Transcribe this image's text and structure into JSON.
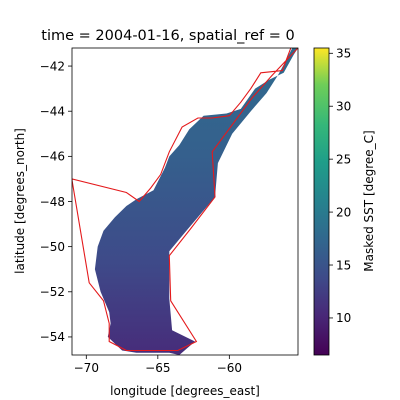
{
  "chart_data": {
    "type": "heatmap",
    "title": "time = 2004-01-16, spatial_ref = 0",
    "xlabel": "longitude [degrees_east]",
    "ylabel": "latitude [degrees_north]",
    "xlim": [
      -71.0,
      -55.2
    ],
    "ylim": [
      -54.8,
      -41.2
    ],
    "xticks": [
      -70,
      -65,
      -60
    ],
    "xtick_labels": [
      "−70",
      "−65",
      "−60"
    ],
    "yticks": [
      -42,
      -44,
      -46,
      -48,
      -50,
      -52,
      -54
    ],
    "ytick_labels": [
      "−42",
      "−44",
      "−46",
      "−48",
      "−50",
      "−52",
      "−54"
    ],
    "colorbar": {
      "label": "Masked SST [degree_C]",
      "colormap": "viridis",
      "range": [
        6.5,
        35.5
      ],
      "ticks": [
        10,
        15,
        20,
        25,
        30,
        35
      ],
      "tick_labels": [
        "10",
        "15",
        "20",
        "25",
        "30",
        "35"
      ]
    },
    "ocean_color": "#3b4f8a",
    "outline_color": "#e41a1c",
    "boundary_lon_lat": [
      [
        -55.2,
        -41.2
      ],
      [
        -55.5,
        -41.5
      ],
      [
        -56.2,
        -42.3
      ],
      [
        -57.2,
        -42.6
      ],
      [
        -58.2,
        -43.0
      ],
      [
        -59.2,
        -43.9
      ],
      [
        -60.2,
        -44.1
      ],
      [
        -61.8,
        -44.2
      ],
      [
        -62.8,
        -44.8
      ],
      [
        -63.5,
        -45.5
      ],
      [
        -64.2,
        -46.0
      ],
      [
        -64.5,
        -46.5
      ],
      [
        -65.3,
        -47.5
      ],
      [
        -66.5,
        -47.9
      ],
      [
        -67.2,
        -48.2
      ],
      [
        -68.0,
        -48.7
      ],
      [
        -68.8,
        -49.3
      ],
      [
        -69.2,
        -50.0
      ],
      [
        -69.4,
        -51.0
      ],
      [
        -69.0,
        -52.0
      ],
      [
        -68.4,
        -52.9
      ],
      [
        -68.3,
        -53.4
      ],
      [
        -68.5,
        -54.0
      ],
      [
        -67.5,
        -54.6
      ],
      [
        -66.5,
        -54.7
      ],
      [
        -65.3,
        -54.7
      ],
      [
        -64.2,
        -54.7
      ],
      [
        -63.5,
        -54.8
      ],
      [
        -62.4,
        -54.2
      ],
      [
        -64.0,
        -53.7
      ],
      [
        -64.2,
        -52.3
      ],
      [
        -64.2,
        -50.2
      ],
      [
        -63.0,
        -49.3
      ],
      [
        -61.0,
        -47.8
      ],
      [
        -60.8,
        -46.3
      ],
      [
        -59.8,
        -45.0
      ],
      [
        -58.5,
        -44.0
      ],
      [
        -57.4,
        -43.2
      ],
      [
        -56.6,
        -42.4
      ],
      [
        -56.0,
        -41.7
      ],
      [
        -55.6,
        -41.2
      ]
    ],
    "outline_lon_lat": [
      [
        -55.7,
        -41.2
      ],
      [
        -56.3,
        -42.2
      ],
      [
        -57.8,
        -42.3
      ],
      [
        -58.5,
        -43.0
      ],
      [
        -59.2,
        -43.6
      ],
      [
        -60.0,
        -44.2
      ],
      [
        -61.2,
        -44.3
      ],
      [
        -62.2,
        -44.3
      ],
      [
        -63.3,
        -44.7
      ],
      [
        -64.2,
        -45.8
      ],
      [
        -64.8,
        -46.8
      ],
      [
        -65.5,
        -47.4
      ],
      [
        -66.3,
        -48.0
      ],
      [
        -67.2,
        -47.6
      ],
      [
        -71.0,
        -47.0
      ],
      [
        -71.0,
        -47.05
      ],
      [
        -69.8,
        -51.6
      ],
      [
        -68.8,
        -52.4
      ],
      [
        -68.4,
        -53.4
      ],
      [
        -68.4,
        -54.2
      ],
      [
        -67.2,
        -54.6
      ],
      [
        -66.1,
        -54.6
      ],
      [
        -64.8,
        -54.6
      ],
      [
        -63.6,
        -54.6
      ],
      [
        -62.3,
        -54.2
      ],
      [
        -64.1,
        -52.4
      ],
      [
        -64.2,
        -50.4
      ],
      [
        -62.7,
        -49.2
      ],
      [
        -61.0,
        -47.8
      ],
      [
        -61.2,
        -45.8
      ],
      [
        -59.8,
        -44.6
      ],
      [
        -58.4,
        -43.4
      ],
      [
        -57.0,
        -42.4
      ],
      [
        -55.2,
        -41.2
      ]
    ]
  }
}
